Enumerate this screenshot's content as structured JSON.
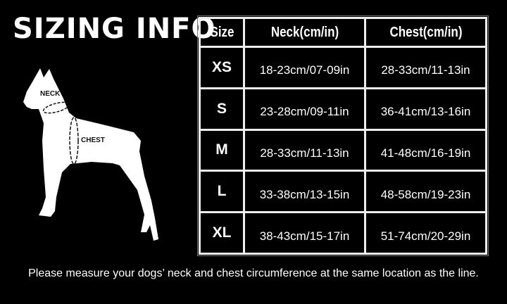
{
  "title": "SIZING INFO",
  "diagram": {
    "neck_label": "NECK",
    "chest_label": "CHEST"
  },
  "table": {
    "headers": [
      "Size",
      "Neck(cm/in)",
      "Chest(cm/in)"
    ],
    "rows": [
      {
        "size": "XS",
        "neck": "18-23cm/07-09in",
        "chest": "28-33cm/11-13in"
      },
      {
        "size": "S",
        "neck": "23-28cm/09-11in",
        "chest": "36-41cm/13-16in"
      },
      {
        "size": "M",
        "neck": "28-33cm/11-13in",
        "chest": "41-48cm/16-19in"
      },
      {
        "size": "L",
        "neck": "33-38cm/13-15in",
        "chest": "48-58cm/19-23in"
      },
      {
        "size": "XL",
        "neck": "38-43cm/15-17in",
        "chest": "51-74cm/20-29in"
      }
    ]
  },
  "note": "Please measure your dogs’  neck and chest circumference at the same location as the line."
}
